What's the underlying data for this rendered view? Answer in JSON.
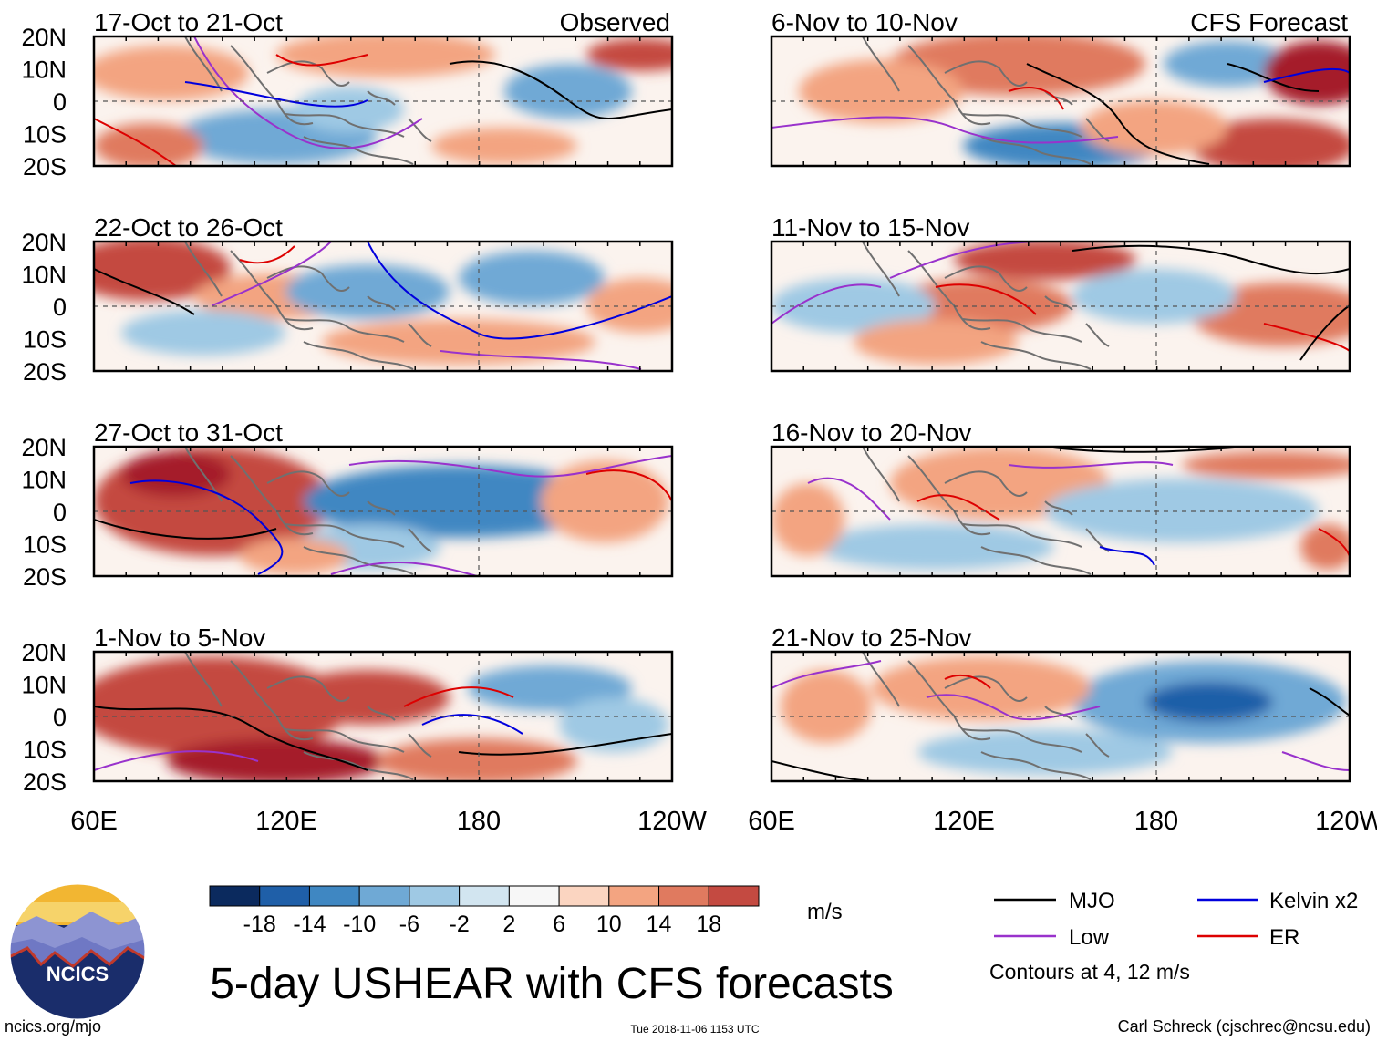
{
  "title": "5-day USHEAR with CFS forecasts",
  "observed_label": "Observed",
  "forecast_label": "CFS Forecast",
  "lat_labels": [
    "20N",
    "10N",
    "0",
    "10S",
    "20S"
  ],
  "lon_labels": [
    "60E",
    "120E",
    "180",
    "120W"
  ],
  "panels_left": [
    {
      "period": "17-Oct to 21-Oct"
    },
    {
      "period": "22-Oct to 26-Oct"
    },
    {
      "period": "27-Oct to 31-Oct"
    },
    {
      "period": "1-Nov to 5-Nov"
    }
  ],
  "panels_right": [
    {
      "period": "6-Nov to 10-Nov"
    },
    {
      "period": "11-Nov to 15-Nov"
    },
    {
      "period": "16-Nov to 20-Nov"
    },
    {
      "period": "21-Nov to 25-Nov"
    }
  ],
  "colorbar": {
    "units": "m/s",
    "ticks": [
      "-18",
      "-14",
      "-10",
      "-6",
      "-2",
      "2",
      "6",
      "10",
      "14",
      "18"
    ],
    "colors": [
      "#0b2a5e",
      "#1f5fa8",
      "#3f87c2",
      "#6fa9d5",
      "#9fc9e4",
      "#d2e5f0",
      "#f7f7f7",
      "#fbd5c1",
      "#f3a481",
      "#e07a5f",
      "#c44a41",
      "#a51d2c",
      "#6b0b1c"
    ]
  },
  "legend": {
    "items": [
      {
        "label": "MJO",
        "color": "#000000"
      },
      {
        "label": "Kelvin x2",
        "color": "#0000dd"
      },
      {
        "label": "Low",
        "color": "#9932cc"
      },
      {
        "label": "ER",
        "color": "#dd0000"
      }
    ],
    "contours_note": "Contours at 4, 12 m/s"
  },
  "logo": {
    "text": "NCICS"
  },
  "footer": {
    "url": "ncics.org/mjo",
    "timestamp": "Tue 2018-11-06 1153 UTC",
    "credit": "Carl Schreck (cjschrec@ncsu.edu)"
  }
}
